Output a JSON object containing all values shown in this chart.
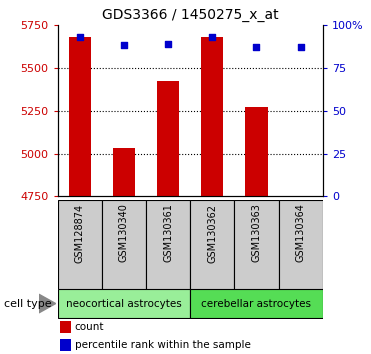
{
  "title": "GDS3366 / 1450275_x_at",
  "samples": [
    "GSM128874",
    "GSM130340",
    "GSM130361",
    "GSM130362",
    "GSM130363",
    "GSM130364"
  ],
  "counts": [
    5680,
    5030,
    5420,
    5680,
    5270,
    4755
  ],
  "percentile_ranks": [
    93,
    88,
    89,
    93,
    87,
    87
  ],
  "ylim_left": [
    4750,
    5750
  ],
  "ylim_right": [
    0,
    100
  ],
  "yticks_left": [
    4750,
    5000,
    5250,
    5500,
    5750
  ],
  "yticks_right": [
    0,
    25,
    50,
    75,
    100
  ],
  "ytick_labels_right": [
    "0",
    "25",
    "50",
    "75",
    "100%"
  ],
  "bar_color": "#cc0000",
  "scatter_color": "#0000cc",
  "group1_label": "neocortical astrocytes",
  "group2_label": "cerebellar astrocytes",
  "group1_indices": [
    0,
    1,
    2
  ],
  "group2_indices": [
    3,
    4,
    5
  ],
  "group1_color": "#99ee99",
  "group2_color": "#55dd55",
  "cell_type_label": "cell type",
  "legend_count_label": "count",
  "legend_percentile_label": "percentile rank within the sample",
  "bar_width": 0.5,
  "base_value": 4750,
  "left_tick_color": "#cc0000",
  "right_tick_color": "#0000cc",
  "sample_box_color": "#cccccc",
  "title_fontsize": 10
}
